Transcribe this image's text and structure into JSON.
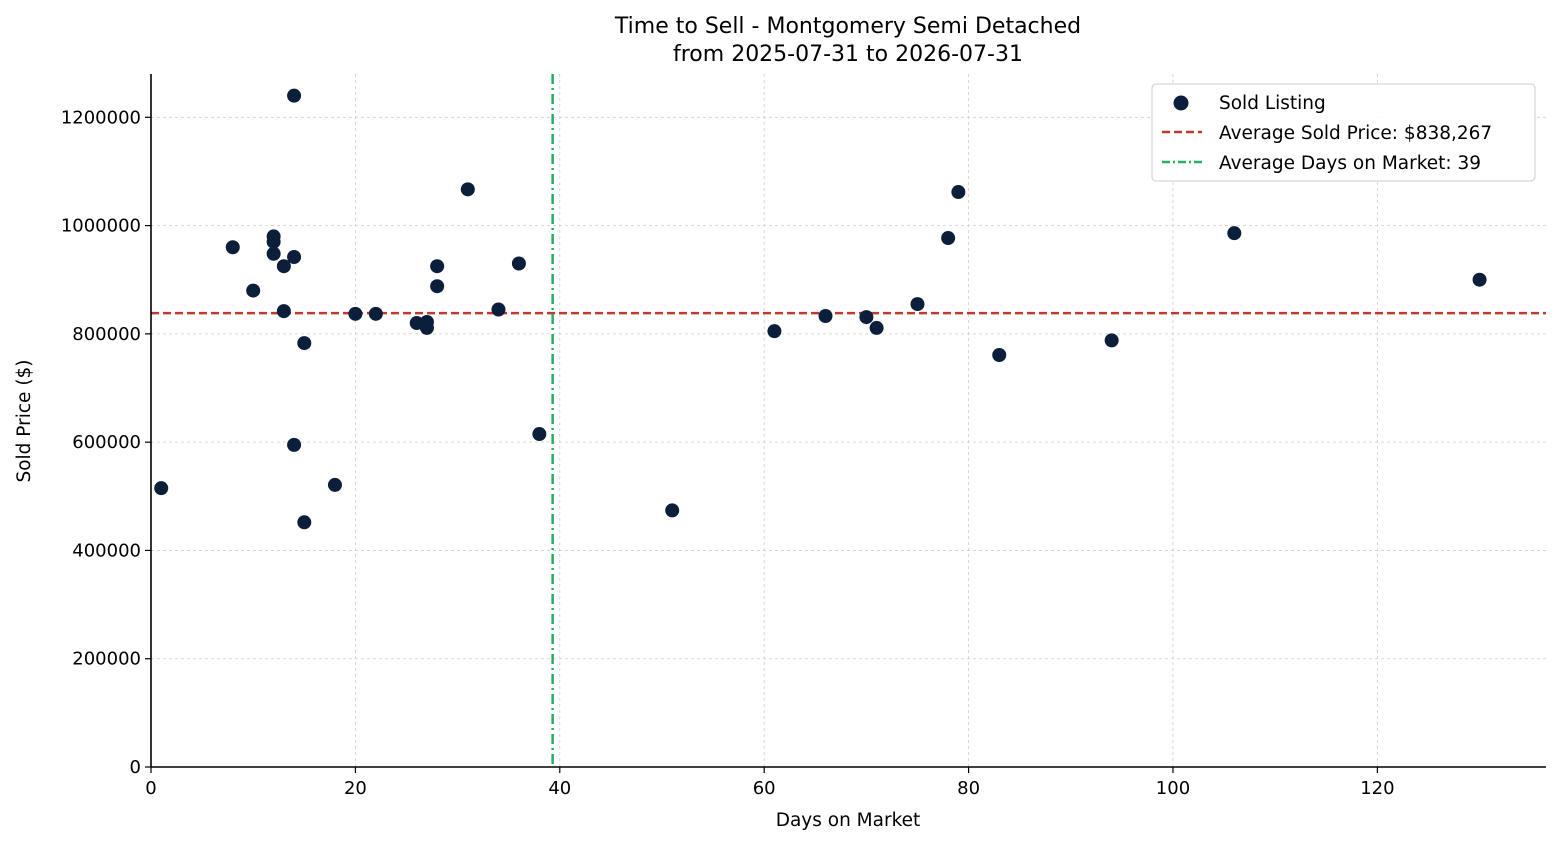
{
  "chart_data": {
    "type": "scatter",
    "title_line1": "Time to Sell - Montgomery Semi Detached",
    "title_line2": "from 2025-07-31 to 2026-07-31",
    "xlabel": "Days on Market",
    "ylabel": "Sold Price ($)",
    "xlim": [
      0,
      136.5
    ],
    "ylim": [
      0,
      1280000
    ],
    "x_ticks": [
      0,
      20,
      40,
      60,
      80,
      100,
      120
    ],
    "y_ticks": [
      0,
      200000,
      400000,
      600000,
      800000,
      1000000,
      1200000
    ],
    "x_tick_labels": [
      "0",
      "20",
      "40",
      "60",
      "80",
      "100",
      "120"
    ],
    "y_tick_labels": [
      "0",
      "200000",
      "400000",
      "600000",
      "800000",
      "1000000",
      "1200000"
    ],
    "grid": true,
    "legend_position": "top-right",
    "colors": {
      "points": "#0b1f3a",
      "avg_price_line": "#c0392b",
      "avg_days_line": "#27ae60"
    },
    "series": [
      {
        "name": "Sold Listing",
        "points": [
          {
            "x": 1,
            "y": 515000
          },
          {
            "x": 8,
            "y": 960000
          },
          {
            "x": 10,
            "y": 880000
          },
          {
            "x": 12,
            "y": 980000
          },
          {
            "x": 12,
            "y": 970000
          },
          {
            "x": 12,
            "y": 948000
          },
          {
            "x": 13,
            "y": 925000
          },
          {
            "x": 13,
            "y": 842000
          },
          {
            "x": 14,
            "y": 1240000
          },
          {
            "x": 14,
            "y": 942000
          },
          {
            "x": 14,
            "y": 595000
          },
          {
            "x": 15,
            "y": 783000
          },
          {
            "x": 15,
            "y": 452000
          },
          {
            "x": 18,
            "y": 521000
          },
          {
            "x": 20,
            "y": 837000
          },
          {
            "x": 22,
            "y": 837000
          },
          {
            "x": 26,
            "y": 820000
          },
          {
            "x": 27,
            "y": 822000
          },
          {
            "x": 27,
            "y": 811000
          },
          {
            "x": 28,
            "y": 925000
          },
          {
            "x": 28,
            "y": 888000
          },
          {
            "x": 31,
            "y": 1067000
          },
          {
            "x": 34,
            "y": 845000
          },
          {
            "x": 36,
            "y": 930000
          },
          {
            "x": 38,
            "y": 615000
          },
          {
            "x": 51,
            "y": 474000
          },
          {
            "x": 61,
            "y": 805000
          },
          {
            "x": 66,
            "y": 833000
          },
          {
            "x": 70,
            "y": 831000
          },
          {
            "x": 71,
            "y": 811000
          },
          {
            "x": 75,
            "y": 855000
          },
          {
            "x": 78,
            "y": 977000
          },
          {
            "x": 79,
            "y": 1062000
          },
          {
            "x": 83,
            "y": 761000
          },
          {
            "x": 94,
            "y": 788000
          },
          {
            "x": 106,
            "y": 986000
          },
          {
            "x": 130,
            "y": 900000
          }
        ]
      }
    ],
    "reference_lines": {
      "avg_price": {
        "value": 838267,
        "orientation": "horizontal",
        "style": "dashed"
      },
      "avg_days": {
        "value": 39.3,
        "orientation": "vertical",
        "style": "dash-dot"
      }
    },
    "legend": {
      "sold_listing": "Sold Listing",
      "avg_price": "Average Sold Price: $838,267",
      "avg_days": "Average Days on Market: 39"
    }
  }
}
